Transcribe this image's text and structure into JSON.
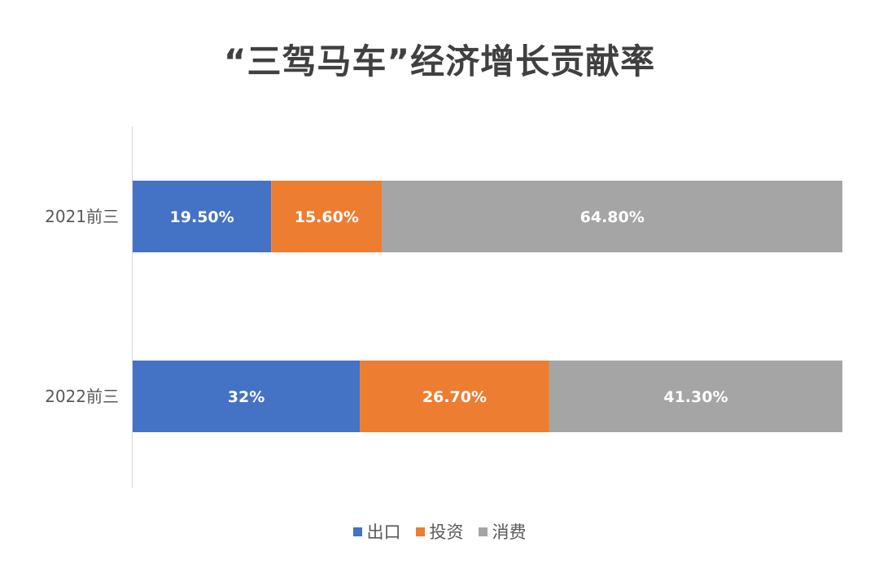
{
  "chart_data": {
    "type": "bar",
    "orientation": "horizontal",
    "stacked": "100%",
    "title": "“三驾马车”经济增长贡献率",
    "categories": [
      "2021前三",
      "2022前三"
    ],
    "series": [
      {
        "name": "出口",
        "color": "#4472C4",
        "values": [
          19.5,
          32
        ],
        "labels": [
          "19.50%",
          "32%"
        ]
      },
      {
        "name": "投资",
        "color": "#ED7D31",
        "values": [
          15.6,
          26.7
        ],
        "labels": [
          "15.60%",
          "26.70%"
        ]
      },
      {
        "name": "消费",
        "color": "#A5A5A5",
        "values": [
          64.8,
          41.3
        ],
        "labels": [
          "64.80%",
          "41.30%"
        ]
      }
    ],
    "xlabel": "",
    "ylabel": "",
    "xlim": [
      0,
      100
    ],
    "grid": false,
    "legend": "bottom"
  }
}
